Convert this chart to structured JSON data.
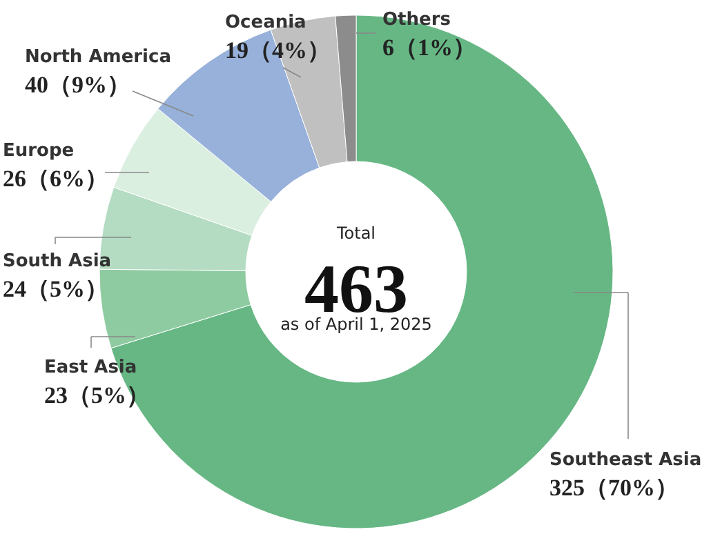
{
  "chart_data": {
    "type": "donut",
    "categories": [
      "Southeast Asia",
      "East Asia",
      "South Asia",
      "Europe",
      "North America",
      "Oceania",
      "Others"
    ],
    "values": [
      325,
      23,
      24,
      26,
      40,
      19,
      6
    ],
    "value_labels": [
      "325（70%）",
      "23（5%）",
      "24（5%）",
      "26（6%）",
      "40（9%）",
      "19（4%）",
      "6（1%）"
    ],
    "colors": [
      "#66b784",
      "#8fcba1",
      "#b4dcc2",
      "#dbefe1",
      "#97b1da",
      "#c0c0c0",
      "#8c8c8c"
    ],
    "annotations": [
      "Total",
      "463",
      "as of April 1, 2025"
    ]
  }
}
